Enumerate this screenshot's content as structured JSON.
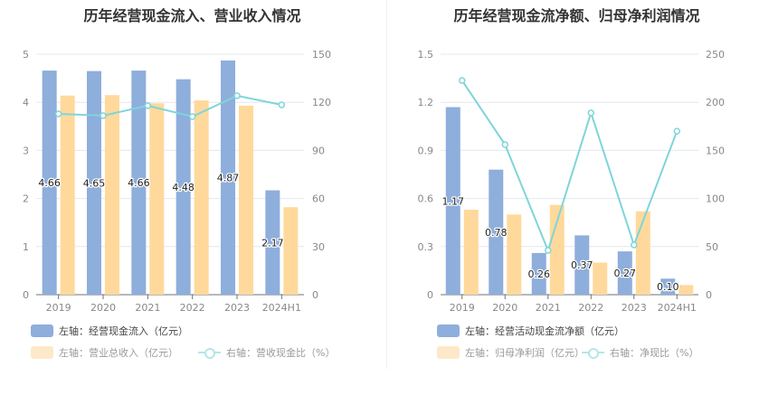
{
  "colors": {
    "bar_blue": "#8eaedc",
    "bar_orange": "#ffd99b",
    "line": "#7fd5d9",
    "legend_orange": "#fde9c9",
    "grid": "#e3e8f0"
  },
  "chart_data": [
    {
      "type": "bar",
      "title": "历年经营现金流入、营业收入情况",
      "categories": [
        "2019",
        "2020",
        "2021",
        "2022",
        "2023",
        "2024H1"
      ],
      "left_axis": {
        "ylim": [
          0,
          5
        ],
        "ticks": [
          "0",
          "1",
          "2",
          "3",
          "4",
          "5"
        ]
      },
      "right_axis": {
        "ylim": [
          0,
          150
        ],
        "ticks": [
          "0",
          "30",
          "60",
          "90",
          "120",
          "150"
        ]
      },
      "series": [
        {
          "name": "左轴：经营现金流入（亿元）",
          "kind": "bar",
          "axis": "left",
          "values": [
            4.66,
            4.65,
            4.66,
            4.48,
            4.87,
            2.17
          ],
          "labels": [
            "4.66",
            "4.65",
            "4.66",
            "4.48",
            "4.87",
            "2.17"
          ]
        },
        {
          "name": "左轴：营业总收入（亿元）",
          "kind": "bar",
          "axis": "left",
          "values": [
            4.14,
            4.15,
            3.98,
            4.04,
            3.93,
            1.82
          ]
        },
        {
          "name": "右轴：营收现金比（%）",
          "kind": "line",
          "axis": "right",
          "values": [
            112.8,
            111.7,
            117.9,
            111.1,
            124.1,
            118.4
          ]
        }
      ],
      "grid": true,
      "legend_position": "bottom-left"
    },
    {
      "type": "bar",
      "title": "历年经营现金流净额、归母净利润情况",
      "categories": [
        "2019",
        "2020",
        "2021",
        "2022",
        "2023",
        "2024H1"
      ],
      "left_axis": {
        "ylim": [
          0,
          1.5
        ],
        "ticks": [
          "0",
          "0.3",
          "0.6",
          "0.9",
          "1.2",
          "1.5"
        ]
      },
      "right_axis": {
        "ylim": [
          0,
          250
        ],
        "ticks": [
          "0",
          "50",
          "100",
          "150",
          "200",
          "250"
        ]
      },
      "series": [
        {
          "name": "左轴：经营活动现金流净额（亿元）",
          "kind": "bar",
          "axis": "left",
          "values": [
            1.17,
            0.78,
            0.26,
            0.37,
            0.27,
            0.1
          ],
          "labels": [
            "1.17",
            "0.78",
            "0.26",
            "0.37",
            "0.27",
            "0.10"
          ]
        },
        {
          "name": "左轴：归母净利润（亿元）",
          "kind": "bar",
          "axis": "left",
          "values": [
            0.53,
            0.5,
            0.56,
            0.2,
            0.52,
            0.06
          ]
        },
        {
          "name": "右轴：净现比（%）",
          "kind": "line",
          "axis": "right",
          "values": [
            222.7,
            156.0,
            46.0,
            189.0,
            51.7,
            170.0
          ]
        }
      ],
      "grid": true,
      "legend_position": "bottom-left"
    }
  ]
}
